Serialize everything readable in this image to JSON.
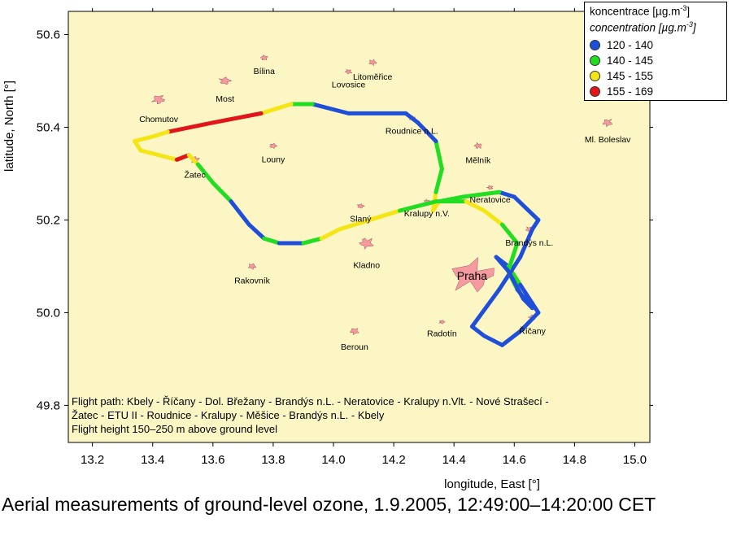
{
  "chart_data": {
    "type": "scatter",
    "xlabel": "longitude, East [°]",
    "ylabel": "latitude, North [°]",
    "xlim": [
      13.12,
      15.05
    ],
    "ylim": [
      49.72,
      50.65
    ],
    "xticks": [
      13.2,
      13.4,
      13.6,
      13.8,
      14.0,
      14.2,
      14.4,
      14.6,
      14.8,
      15.0
    ],
    "yticks": [
      49.8,
      50.0,
      50.2,
      50.4,
      50.6
    ],
    "xtick_labels": [
      "13.2",
      "13.4",
      "13.6",
      "13.8",
      "14.0",
      "14.2",
      "14.4",
      "14.6",
      "14.8",
      "15.0"
    ],
    "ytick_labels": [
      "49.8",
      "50.0",
      "50.2",
      "50.4",
      "50.6"
    ],
    "background": "#fbf6c3",
    "town_color": "#f59aa0",
    "legend": {
      "placement": "top-right",
      "title": "koncentrace [µg.m",
      "title_sup": "-3",
      "title_end": "]",
      "subtitle": "concentration [µg.m",
      "subtitle_sup": "-3",
      "subtitle_end": "]",
      "entries": [
        {
          "label": "120 - 140",
          "color": "#1f4fd8"
        },
        {
          "label": "140 - 145",
          "color": "#22dd22"
        },
        {
          "label": "145 - 155",
          "color": "#f4e516"
        },
        {
          "label": "155 - 169",
          "color": "#e0161a"
        }
      ]
    },
    "towns": [
      {
        "name": "Chomutov",
        "lon": 13.42,
        "lat": 50.46,
        "size": 0.035
      },
      {
        "name": "Most",
        "lon": 13.64,
        "lat": 50.5,
        "size": 0.03
      },
      {
        "name": "Bílina",
        "lon": 13.77,
        "lat": 50.55,
        "size": 0.02
      },
      {
        "name": "Lovosice",
        "lon": 14.05,
        "lat": 50.52,
        "size": 0.018
      },
      {
        "name": "Litoměřice",
        "lon": 14.13,
        "lat": 50.54,
        "size": 0.022
      },
      {
        "name": "Roudnice n.L.",
        "lon": 14.26,
        "lat": 50.42,
        "size": 0.018
      },
      {
        "name": "Mělník",
        "lon": 14.48,
        "lat": 50.36,
        "size": 0.022
      },
      {
        "name": "Ml. Boleslav",
        "lon": 14.91,
        "lat": 50.41,
        "size": 0.028
      },
      {
        "name": "Louny",
        "lon": 13.8,
        "lat": 50.36,
        "size": 0.02
      },
      {
        "name": "Žatec",
        "lon": 13.54,
        "lat": 50.33,
        "size": 0.024
      },
      {
        "name": "Neratovice",
        "lon": 14.52,
        "lat": 50.27,
        "size": 0.016
      },
      {
        "name": "Brandýs n.L.",
        "lon": 14.65,
        "lat": 50.18,
        "size": 0.02
      },
      {
        "name": "Slaný",
        "lon": 14.09,
        "lat": 50.23,
        "size": 0.018
      },
      {
        "name": "Kralupy n.V.",
        "lon": 14.31,
        "lat": 50.24,
        "size": 0.016
      },
      {
        "name": "Kladno",
        "lon": 14.11,
        "lat": 50.15,
        "size": 0.04
      },
      {
        "name": "Rakovník",
        "lon": 13.73,
        "lat": 50.1,
        "size": 0.022
      },
      {
        "name": "Praha",
        "lon": 14.46,
        "lat": 50.08,
        "size": 0.12
      },
      {
        "name": "Říčany",
        "lon": 14.66,
        "lat": 49.99,
        "size": 0.02
      },
      {
        "name": "Beroun",
        "lon": 14.07,
        "lat": 49.96,
        "size": 0.025
      },
      {
        "name": "Radotín",
        "lon": 14.36,
        "lat": 49.98,
        "size": 0.015
      }
    ],
    "flight_path": [
      {
        "lon": 14.54,
        "lat": 50.12,
        "c": "blue"
      },
      {
        "lon": 14.58,
        "lat": 50.1,
        "c": "blue"
      },
      {
        "lon": 14.62,
        "lat": 50.06,
        "c": "green"
      },
      {
        "lon": 14.66,
        "lat": 50.02,
        "c": "blue"
      },
      {
        "lon": 14.68,
        "lat": 50.0,
        "c": "blue"
      },
      {
        "lon": 14.62,
        "lat": 49.96,
        "c": "blue"
      },
      {
        "lon": 14.56,
        "lat": 49.93,
        "c": "blue"
      },
      {
        "lon": 14.5,
        "lat": 49.95,
        "c": "blue"
      },
      {
        "lon": 14.46,
        "lat": 49.97,
        "c": "blue"
      },
      {
        "lon": 14.55,
        "lat": 50.05,
        "c": "blue"
      },
      {
        "lon": 14.62,
        "lat": 50.12,
        "c": "blue"
      },
      {
        "lon": 14.66,
        "lat": 50.18,
        "c": "blue"
      },
      {
        "lon": 14.68,
        "lat": 50.2,
        "c": "blue"
      },
      {
        "lon": 14.6,
        "lat": 50.25,
        "c": "blue"
      },
      {
        "lon": 14.55,
        "lat": 50.26,
        "c": "blue"
      },
      {
        "lon": 14.43,
        "lat": 50.25,
        "c": "green"
      },
      {
        "lon": 14.35,
        "lat": 50.24,
        "c": "green"
      },
      {
        "lon": 14.33,
        "lat": 50.22,
        "c": "yellow"
      },
      {
        "lon": 14.34,
        "lat": 50.26,
        "c": "yellow"
      },
      {
        "lon": 14.36,
        "lat": 50.31,
        "c": "green"
      },
      {
        "lon": 14.34,
        "lat": 50.37,
        "c": "green"
      },
      {
        "lon": 14.28,
        "lat": 50.41,
        "c": "blue"
      },
      {
        "lon": 14.24,
        "lat": 50.43,
        "c": "blue"
      },
      {
        "lon": 14.05,
        "lat": 50.43,
        "c": "blue"
      },
      {
        "lon": 13.93,
        "lat": 50.45,
        "c": "blue"
      },
      {
        "lon": 13.86,
        "lat": 50.45,
        "c": "green"
      },
      {
        "lon": 13.76,
        "lat": 50.43,
        "c": "yellow"
      },
      {
        "lon": 13.6,
        "lat": 50.41,
        "c": "red"
      },
      {
        "lon": 13.45,
        "lat": 50.39,
        "c": "red"
      },
      {
        "lon": 13.4,
        "lat": 50.38,
        "c": "yellow"
      },
      {
        "lon": 13.34,
        "lat": 50.37,
        "c": "yellow"
      },
      {
        "lon": 13.36,
        "lat": 50.35,
        "c": "yellow"
      },
      {
        "lon": 13.48,
        "lat": 50.33,
        "c": "yellow"
      },
      {
        "lon": 13.52,
        "lat": 50.34,
        "c": "red"
      },
      {
        "lon": 13.55,
        "lat": 50.32,
        "c": "yellow"
      },
      {
        "lon": 13.6,
        "lat": 50.28,
        "c": "green"
      },
      {
        "lon": 13.66,
        "lat": 50.24,
        "c": "green"
      },
      {
        "lon": 13.72,
        "lat": 50.19,
        "c": "blue"
      },
      {
        "lon": 13.77,
        "lat": 50.16,
        "c": "blue"
      },
      {
        "lon": 13.82,
        "lat": 50.15,
        "c": "green"
      },
      {
        "lon": 13.9,
        "lat": 50.15,
        "c": "blue"
      },
      {
        "lon": 13.96,
        "lat": 50.16,
        "c": "green"
      },
      {
        "lon": 14.02,
        "lat": 50.18,
        "c": "yellow"
      },
      {
        "lon": 14.12,
        "lat": 50.2,
        "c": "yellow"
      },
      {
        "lon": 14.22,
        "lat": 50.22,
        "c": "yellow"
      },
      {
        "lon": 14.34,
        "lat": 50.24,
        "c": "green"
      },
      {
        "lon": 14.44,
        "lat": 50.24,
        "c": "green"
      },
      {
        "lon": 14.5,
        "lat": 50.22,
        "c": "yellow"
      },
      {
        "lon": 14.56,
        "lat": 50.19,
        "c": "yellow"
      },
      {
        "lon": 14.61,
        "lat": 50.15,
        "c": "green"
      },
      {
        "lon": 14.58,
        "lat": 50.09,
        "c": "green"
      },
      {
        "lon": 14.61,
        "lat": 50.05,
        "c": "green"
      },
      {
        "lon": 14.66,
        "lat": 50.01,
        "c": "blue"
      },
      {
        "lon": 14.63,
        "lat": 50.03,
        "c": "blue"
      },
      {
        "lon": 14.58,
        "lat": 50.09,
        "c": "blue"
      },
      {
        "lon": 14.54,
        "lat": 50.12,
        "c": "blue"
      }
    ],
    "notes": [
      "Flight path: Kbely - Říčany - Dol. Břežany - Brandýs n.L. - Neratovice - Kralupy n.Vlt. - Nové Strašecí -",
      "Žatec - ETU II - Roudnice - Kralupy - Měšice - Brandýs n.L. - Kbely",
      "Flight height 150–250 m above ground level"
    ]
  },
  "caption": "Aerial measurements of ground-level ozone, 1.9.2005,  12:49:00–14:20:00 CET"
}
